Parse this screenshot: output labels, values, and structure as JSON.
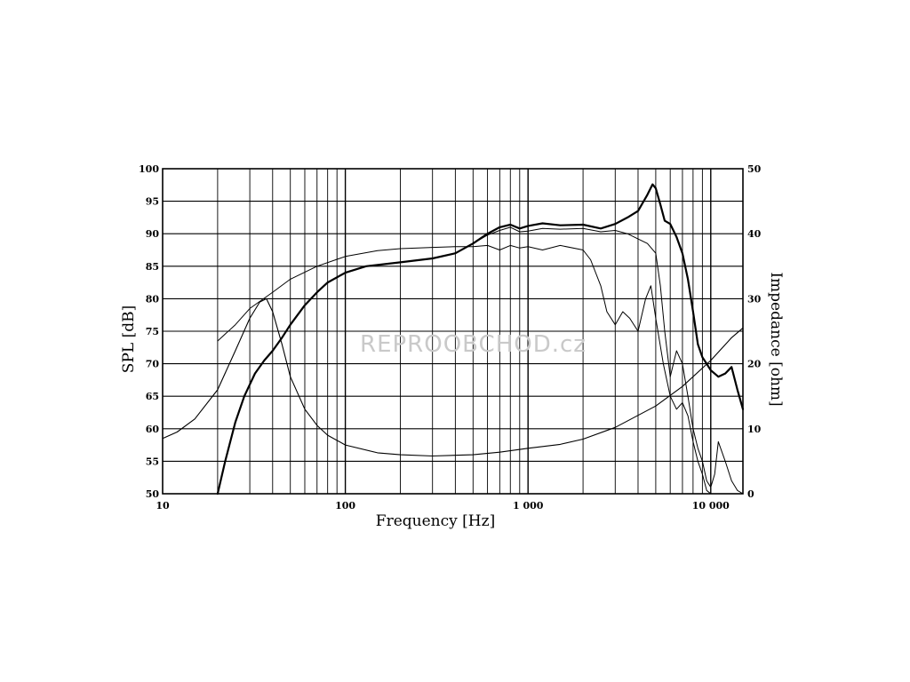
{
  "chart_data": {
    "type": "line",
    "xlabel": "Frequency [Hz]",
    "ylabel": "SPL [dB]",
    "y2label": "Impedance [ohm]",
    "x_scale": "log",
    "xlim": [
      10,
      15000
    ],
    "ylim": [
      50,
      100
    ],
    "y2lim": [
      0,
      50
    ],
    "grid": true,
    "x_ticks": [
      {
        "value": 10,
        "label": "10"
      },
      {
        "value": 100,
        "label": "100"
      },
      {
        "value": 1000,
        "label": "1 000"
      },
      {
        "value": 10000,
        "label": "10 000"
      }
    ],
    "y_ticks": [
      "50",
      "55",
      "60",
      "65",
      "70",
      "75",
      "80",
      "85",
      "90",
      "95",
      "100"
    ],
    "y2_ticks": [
      "0",
      "10",
      "20",
      "30",
      "40",
      "50"
    ],
    "watermark": "REPROOBCHOD.cz",
    "series": [
      {
        "id": "spl-on-axis",
        "axis": "left",
        "stroke_width": 2.2,
        "points": [
          [
            20,
            50
          ],
          [
            22,
            55
          ],
          [
            25,
            61
          ],
          [
            28,
            65
          ],
          [
            32,
            68.5
          ],
          [
            36,
            70.5
          ],
          [
            40,
            72
          ],
          [
            45,
            74
          ],
          [
            50,
            76
          ],
          [
            60,
            79
          ],
          [
            70,
            81
          ],
          [
            80,
            82.5
          ],
          [
            100,
            84
          ],
          [
            130,
            85
          ],
          [
            200,
            85.6
          ],
          [
            300,
            86.2
          ],
          [
            400,
            87
          ],
          [
            500,
            88.5
          ],
          [
            600,
            90
          ],
          [
            700,
            91
          ],
          [
            800,
            91.4
          ],
          [
            900,
            90.8
          ],
          [
            1000,
            91.2
          ],
          [
            1200,
            91.6
          ],
          [
            1500,
            91.3
          ],
          [
            2000,
            91.4
          ],
          [
            2500,
            90.8
          ],
          [
            3000,
            91.5
          ],
          [
            3500,
            92.5
          ],
          [
            4000,
            93.5
          ],
          [
            4500,
            96
          ],
          [
            4800,
            97.6
          ],
          [
            5000,
            97
          ],
          [
            5300,
            94.5
          ],
          [
            5600,
            92
          ],
          [
            6000,
            91.5
          ],
          [
            6500,
            89.5
          ],
          [
            7000,
            87
          ],
          [
            7500,
            83
          ],
          [
            8000,
            78
          ],
          [
            8500,
            73
          ],
          [
            9000,
            71
          ],
          [
            9500,
            70
          ],
          [
            10000,
            69
          ],
          [
            11000,
            68
          ],
          [
            12000,
            68.5
          ],
          [
            13000,
            69.5
          ],
          [
            14000,
            66
          ],
          [
            15000,
            63
          ]
        ]
      },
      {
        "id": "spl-30deg",
        "axis": "left",
        "stroke_width": 1,
        "points": [
          [
            500,
            88.5
          ],
          [
            600,
            89.8
          ],
          [
            700,
            90.5
          ],
          [
            800,
            91
          ],
          [
            900,
            90.3
          ],
          [
            1000,
            90.4
          ],
          [
            1200,
            90.8
          ],
          [
            1500,
            90.7
          ],
          [
            2000,
            90.8
          ],
          [
            2500,
            90.3
          ],
          [
            3000,
            90.5
          ],
          [
            3500,
            90
          ],
          [
            4000,
            89.2
          ],
          [
            4500,
            88.5
          ],
          [
            5000,
            87
          ],
          [
            5300,
            82
          ],
          [
            5600,
            75
          ],
          [
            6000,
            68
          ],
          [
            6500,
            72
          ],
          [
            7000,
            70
          ],
          [
            7500,
            65
          ],
          [
            8000,
            60
          ],
          [
            8500,
            57
          ],
          [
            9000,
            55
          ],
          [
            9500,
            52
          ],
          [
            10000,
            51
          ],
          [
            10500,
            53
          ],
          [
            11000,
            58
          ],
          [
            12000,
            55
          ],
          [
            13000,
            52
          ],
          [
            14000,
            50.5
          ],
          [
            15000,
            50
          ]
        ]
      },
      {
        "id": "spl-60deg",
        "axis": "left",
        "stroke_width": 1,
        "points": [
          [
            500,
            88
          ],
          [
            600,
            88.2
          ],
          [
            700,
            87.5
          ],
          [
            800,
            88.2
          ],
          [
            900,
            87.8
          ],
          [
            1000,
            88
          ],
          [
            1200,
            87.5
          ],
          [
            1500,
            88.2
          ],
          [
            2000,
            87.5
          ],
          [
            2200,
            86
          ],
          [
            2500,
            82
          ],
          [
            2700,
            78
          ],
          [
            3000,
            76
          ],
          [
            3300,
            78
          ],
          [
            3600,
            77
          ],
          [
            4000,
            75
          ],
          [
            4400,
            80
          ],
          [
            4700,
            82
          ],
          [
            5000,
            77
          ],
          [
            5500,
            70
          ],
          [
            6000,
            65
          ],
          [
            6500,
            63
          ],
          [
            7000,
            64
          ],
          [
            7500,
            62
          ],
          [
            8000,
            58
          ],
          [
            8500,
            55
          ],
          [
            9000,
            53
          ],
          [
            9500,
            50.5
          ],
          [
            10000,
            50
          ]
        ]
      },
      {
        "id": "impedance",
        "axis": "right",
        "stroke_width": 1.1,
        "points": [
          [
            10,
            8.5
          ],
          [
            12,
            9.5
          ],
          [
            15,
            11.5
          ],
          [
            20,
            16
          ],
          [
            25,
            22
          ],
          [
            30,
            27
          ],
          [
            34,
            29.5
          ],
          [
            37,
            30
          ],
          [
            40,
            28
          ],
          [
            45,
            23
          ],
          [
            50,
            18
          ],
          [
            60,
            13
          ],
          [
            70,
            10.5
          ],
          [
            80,
            9
          ],
          [
            100,
            7.5
          ],
          [
            150,
            6.3
          ],
          [
            200,
            6
          ],
          [
            300,
            5.8
          ],
          [
            500,
            6
          ],
          [
            700,
            6.4
          ],
          [
            1000,
            7
          ],
          [
            1500,
            7.6
          ],
          [
            2000,
            8.4
          ],
          [
            3000,
            10.2
          ],
          [
            5000,
            13.5
          ],
          [
            7000,
            16.5
          ],
          [
            10000,
            20.5
          ],
          [
            13000,
            24
          ],
          [
            15000,
            25.5
          ]
        ]
      },
      {
        "id": "impedance-free-air",
        "axis": "left",
        "stroke_width": 1,
        "points": [
          [
            20,
            73.5
          ],
          [
            25,
            76
          ],
          [
            30,
            78.5
          ],
          [
            40,
            81
          ],
          [
            50,
            83
          ],
          [
            70,
            85
          ],
          [
            100,
            86.5
          ],
          [
            150,
            87.4
          ],
          [
            200,
            87.7
          ],
          [
            300,
            87.9
          ],
          [
            400,
            88
          ],
          [
            500,
            88
          ]
        ]
      }
    ]
  }
}
